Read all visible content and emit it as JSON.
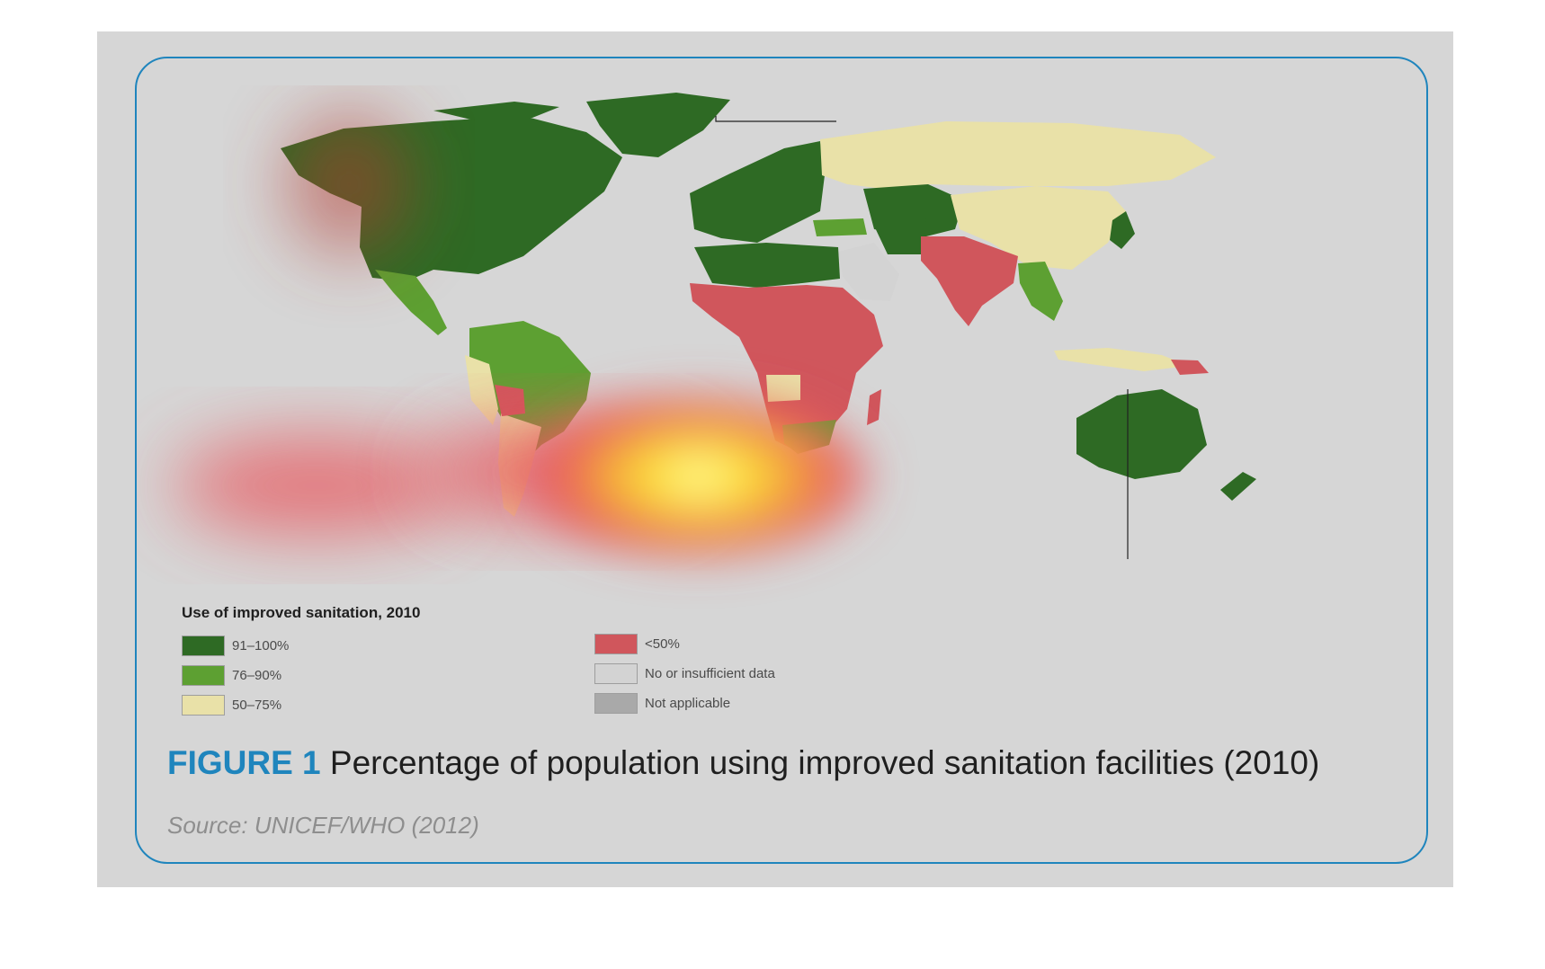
{
  "legend": {
    "title": "Use of improved sanitation, 2010",
    "items": [
      {
        "label": "91–100%",
        "color": "#2e6a24"
      },
      {
        "label": "76–90%",
        "color": "#5da032"
      },
      {
        "label": "50–75%",
        "color": "#e9e1a8"
      },
      {
        "label": "<50%",
        "color": "#d0565c"
      },
      {
        "label": "No or insufficient data",
        "color": "#d3d3d3"
      },
      {
        "label": "Not applicable",
        "color": "#a9a9a9"
      }
    ]
  },
  "caption": {
    "figure_label": "FIGURE 1",
    "text": "Percentage of population using improved sanitation facilities (2010)",
    "source": "Source: UNICEF/WHO (2012)"
  },
  "colors": {
    "frame_border": "#1f85bd",
    "panel_background": "#d6d6d6",
    "ocean": "#d9d9d9"
  }
}
